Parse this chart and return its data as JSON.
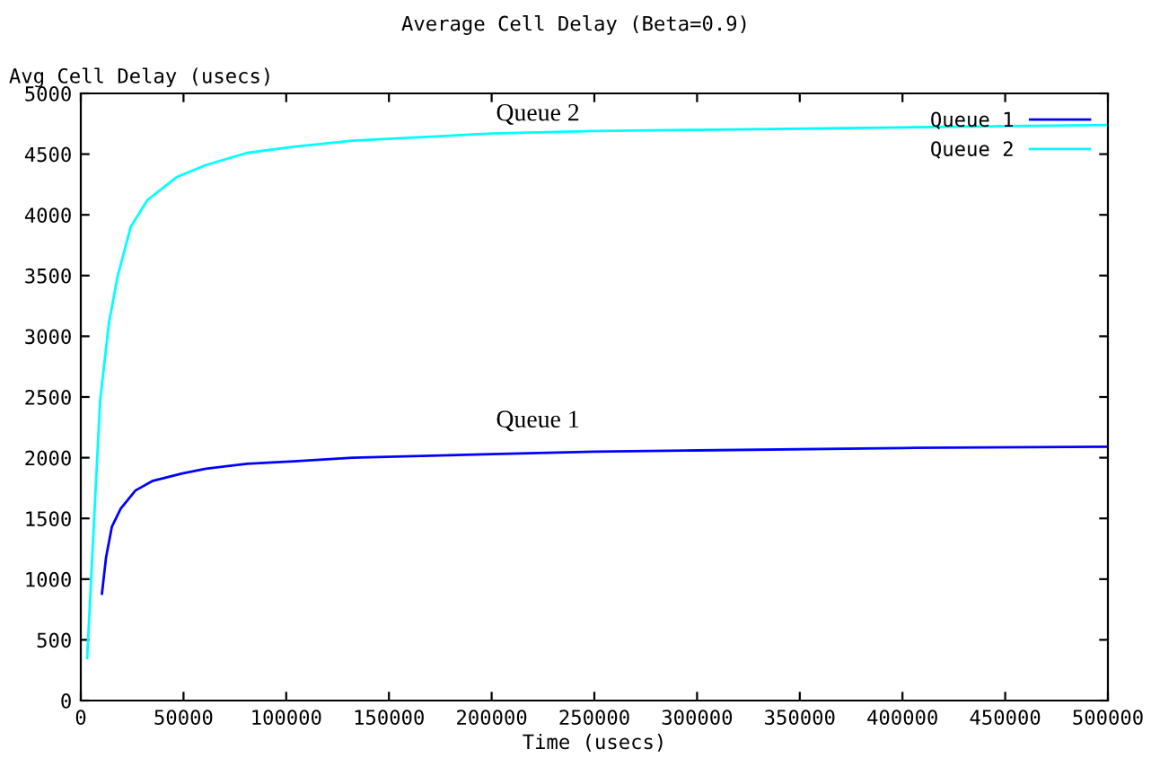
{
  "chart_data": {
    "type": "line",
    "title": "Average Cell Delay (Beta=0.9)",
    "xlabel": "Time (usecs)",
    "ylabel": "Avg Cell Delay (usecs)",
    "xlim": [
      0,
      500000
    ],
    "ylim": [
      0,
      5000
    ],
    "xticks": [
      0,
      50000,
      100000,
      150000,
      200000,
      250000,
      300000,
      350000,
      400000,
      450000,
      500000
    ],
    "yticks": [
      0,
      500,
      1000,
      1500,
      2000,
      2500,
      3000,
      3500,
      4000,
      4500,
      5000
    ],
    "grid": false,
    "legend": "top right",
    "marker": "none",
    "line_style": "solid",
    "annotations": [
      "Queue 2",
      "Queue 1"
    ],
    "series": [
      {
        "name": "Queue 1",
        "color": "#0000ff",
        "x": [
          10300,
          12300,
          15100,
          19400,
          26600,
          35100,
          49400,
          60900,
          80900,
          103700,
          132300,
          200000,
          250000,
          300000,
          400000,
          500000
        ],
        "values": [
          880,
          1180,
          1430,
          1580,
          1730,
          1810,
          1870,
          1910,
          1950,
          1970,
          2000,
          2030,
          2050,
          2060,
          2080,
          2090
        ]
      },
      {
        "name": "Queue 2",
        "color": "#00ffff",
        "x": [
          3100,
          5100,
          9400,
          13700,
          18000,
          24300,
          32300,
          46600,
          60900,
          80900,
          103700,
          132300,
          200000,
          250000,
          300000,
          400000,
          500000
        ],
        "values": [
          350,
          1030,
          2470,
          3110,
          3500,
          3900,
          4120,
          4310,
          4410,
          4510,
          4560,
          4610,
          4670,
          4690,
          4700,
          4720,
          4740
        ]
      }
    ]
  }
}
